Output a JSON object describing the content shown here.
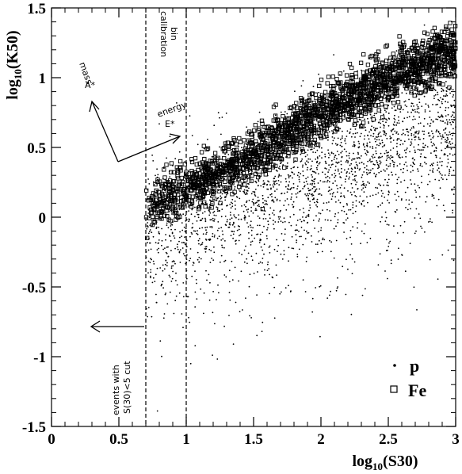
{
  "chart_data": {
    "type": "scatter",
    "xlabel_base": "log",
    "xlabel_sub": "10",
    "xlabel_rest": "(S30)",
    "ylabel_base": "log",
    "ylabel_sub": "10",
    "ylabel_rest": "(K50)",
    "xlim": [
      0,
      3
    ],
    "ylim": [
      -1.5,
      1.5
    ],
    "x_ticks": [
      {
        "value": 0,
        "label": "0"
      },
      {
        "value": 0.5,
        "label": "0.5"
      },
      {
        "value": 1,
        "label": "1"
      },
      {
        "value": 1.5,
        "label": "1.5"
      },
      {
        "value": 2,
        "label": "2"
      },
      {
        "value": 2.5,
        "label": "2.5"
      },
      {
        "value": 3,
        "label": "3"
      }
    ],
    "y_ticks": [
      {
        "value": -1.5,
        "label": "-1.5"
      },
      {
        "value": -1,
        "label": "-1"
      },
      {
        "value": -0.5,
        "label": "-0.5"
      },
      {
        "value": 0,
        "label": "0"
      },
      {
        "value": 0.5,
        "label": "0.5"
      },
      {
        "value": 1,
        "label": "1"
      },
      {
        "value": 1.5,
        "label": "1.5"
      }
    ],
    "cut_lines": [
      0.7,
      1.0
    ],
    "annotations": {
      "calibration_line1": "calibration",
      "calibration_line2": "bin",
      "mass_label": "mass",
      "mass_symbol": "A*",
      "energy_label": "energy",
      "energy_symbol": "E*",
      "cut_line1": "events with",
      "cut_line2": "S(30)<5 cut"
    },
    "legend": {
      "position": "bottom-right",
      "entries": [
        {
          "name": "p",
          "marker": "dot"
        },
        {
          "name": "Fe",
          "marker": "open-square"
        }
      ]
    },
    "series": [
      {
        "name": "p",
        "marker": "dot",
        "band_x_range": [
          0.7,
          3.0
        ],
        "band_trend": [
          [
            0.7,
            -0.1
          ],
          [
            1.0,
            0.0
          ],
          [
            1.5,
            0.15
          ],
          [
            2.0,
            0.35
          ],
          [
            2.5,
            0.55
          ],
          [
            3.0,
            0.75
          ]
        ],
        "band_spread": 0.45
      },
      {
        "name": "Fe",
        "marker": "open-square",
        "band_x_range": [
          0.7,
          3.0
        ],
        "band_trend": [
          [
            0.7,
            0.05
          ],
          [
            1.0,
            0.2
          ],
          [
            1.5,
            0.45
          ],
          [
            2.0,
            0.75
          ],
          [
            2.5,
            1.0
          ],
          [
            3.0,
            1.2
          ]
        ],
        "band_spread": 0.2
      }
    ]
  }
}
